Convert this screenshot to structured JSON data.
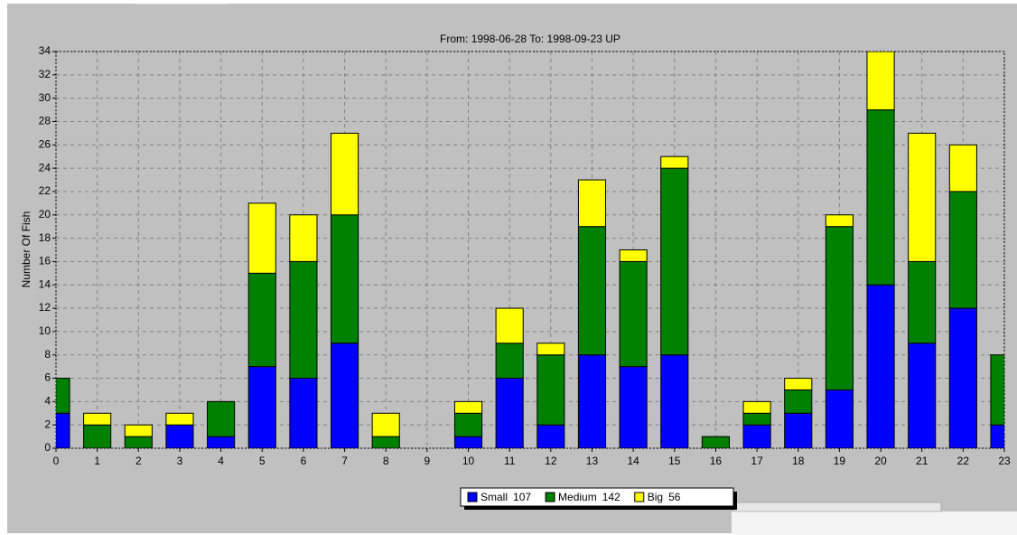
{
  "chart_data": {
    "type": "bar",
    "stacked": true,
    "title": "From: 1998-06-28    To: 1998-09-23    UP",
    "ylabel": "Number Of Fish",
    "x": [
      0,
      1,
      2,
      3,
      4,
      5,
      6,
      7,
      8,
      9,
      10,
      11,
      12,
      13,
      14,
      15,
      16,
      17,
      18,
      19,
      20,
      21,
      22,
      23
    ],
    "xlim": [
      0,
      23
    ],
    "xticks": [
      0,
      1,
      2,
      3,
      4,
      5,
      6,
      7,
      8,
      9,
      10,
      11,
      12,
      13,
      14,
      15,
      16,
      17,
      18,
      19,
      20,
      21,
      22,
      23
    ],
    "ylim": [
      0,
      34
    ],
    "yticks": [
      0,
      2,
      4,
      6,
      8,
      10,
      12,
      14,
      16,
      18,
      20,
      22,
      24,
      26,
      28,
      30,
      32,
      34
    ],
    "grid": true,
    "legend": "bottom",
    "series": [
      {
        "name": "Small",
        "total": 107,
        "color": "#0000ff",
        "values": [
          3,
          0,
          0,
          2,
          1,
          7,
          6,
          9,
          0,
          0,
          1,
          6,
          2,
          8,
          7,
          8,
          0,
          2,
          3,
          5,
          14,
          9,
          12,
          2
        ]
      },
      {
        "name": "Medium",
        "total": 142,
        "color": "#008000",
        "values": [
          3,
          2,
          1,
          0,
          3,
          8,
          10,
          11,
          1,
          0,
          2,
          3,
          6,
          11,
          9,
          16,
          1,
          1,
          2,
          14,
          15,
          7,
          10,
          6
        ]
      },
      {
        "name": "Big",
        "total": 56,
        "color": "#ffff00",
        "values": [
          0,
          1,
          1,
          1,
          0,
          6,
          4,
          7,
          2,
          0,
          1,
          3,
          1,
          4,
          1,
          1,
          0,
          1,
          1,
          1,
          5,
          11,
          4,
          0
        ]
      }
    ]
  }
}
